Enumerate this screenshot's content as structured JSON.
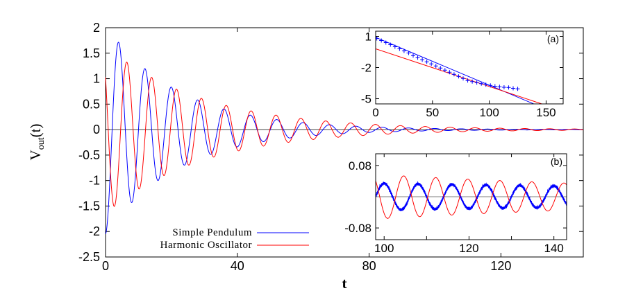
{
  "chart_data": [
    {
      "panel": "main",
      "type": "line",
      "xlabel": "t",
      "ylabel_main": "V",
      "ylabel_sub": "out",
      "ylabel_suffix": "(t)",
      "xlim": [
        0,
        145
      ],
      "ylim": [
        -2.5,
        2
      ],
      "xticks": [
        0,
        40,
        80,
        120
      ],
      "yticks": [
        -2.5,
        -2,
        -1.5,
        -1,
        -0.5,
        0,
        0.5,
        1,
        1.5,
        2
      ],
      "xtick_labels": [
        "0",
        "40",
        "80",
        "120"
      ],
      "ytick_labels": [
        "-2.5",
        "-2",
        "-1.5",
        "-1",
        "-0.5",
        "0",
        "0.5",
        "1",
        "1.5",
        "2"
      ],
      "legend_position": "bottom-left",
      "series": [
        {
          "name": "Simple Pendulum",
          "color": "#0000ff",
          "model": "damped-oscillation",
          "amplitude": 2.05,
          "decay_rate": 0.045,
          "period": 8.0,
          "phase": 3.14159,
          "x_range": [
            0,
            145
          ]
        },
        {
          "name": "Harmonic Oscillator",
          "color": "#ff0000",
          "model": "damped-oscillation",
          "amplitude": 1.65,
          "decay_rate": 0.034,
          "period": 7.55,
          "phase": 0.9,
          "x_range": [
            0,
            145
          ]
        }
      ]
    },
    {
      "panel": "inset-a",
      "label": "(a)",
      "type": "scatter",
      "xlim": [
        0,
        165
      ],
      "ylim": [
        -5.5,
        1.5
      ],
      "xticks": [
        0,
        50,
        100,
        150
      ],
      "xtick_labels": [
        "0",
        "50",
        "100",
        "150"
      ],
      "yticks": [
        1,
        -2,
        -5
      ],
      "ytick_labels": [
        "1",
        "-2",
        "-5"
      ],
      "points": {
        "color": "#0000ff",
        "marker": "plus",
        "x": [
          1,
          5,
          9,
          13,
          17,
          21,
          25,
          29,
          33,
          37,
          41,
          45,
          49,
          53,
          57,
          61,
          65,
          69,
          73,
          77,
          81,
          85,
          89,
          93,
          97,
          101,
          105,
          109,
          113,
          117,
          121,
          125
        ],
        "y": [
          0.8,
          0.6,
          0.4,
          0.2,
          0.0,
          -0.2,
          -0.4,
          -0.6,
          -0.85,
          -1.05,
          -1.25,
          -1.45,
          -1.65,
          -1.85,
          -2.05,
          -2.25,
          -2.45,
          -2.65,
          -2.85,
          -3.05,
          -3.25,
          -3.35,
          -3.45,
          -3.55,
          -3.65,
          -3.72,
          -3.8,
          -3.85,
          -3.9,
          -3.92,
          -4.0,
          -4.05
        ]
      },
      "lines": [
        {
          "color": "#0000ff",
          "x": [
            0,
            150
          ],
          "y": [
            0.9,
            -6.0
          ]
        },
        {
          "color": "#ff0000",
          "x": [
            0,
            160
          ],
          "y": [
            -0.2,
            -6.0
          ]
        }
      ]
    },
    {
      "panel": "inset-b",
      "label": "(b)",
      "type": "line",
      "xlim": [
        98,
        143
      ],
      "ylim": [
        -0.11,
        0.11
      ],
      "xticks": [
        100,
        120,
        140
      ],
      "minor_xticks": [
        110,
        130
      ],
      "xtick_labels": [
        "100",
        "120",
        "140"
      ],
      "yticks": [
        0.08,
        -0.08
      ],
      "ytick_labels": [
        "0.08",
        "-0.08"
      ],
      "series": [
        {
          "color": "#0000ff",
          "model": "noisy-oscillation",
          "amplitude": 0.034,
          "period": 8.0,
          "phase": 3.14159,
          "decay_rate": 0.005
        },
        {
          "color": "#ff0000",
          "model": "oscillation",
          "amplitude": 0.056,
          "period": 7.55,
          "phase": 0.9,
          "decay_rate": 0.011
        }
      ]
    }
  ]
}
